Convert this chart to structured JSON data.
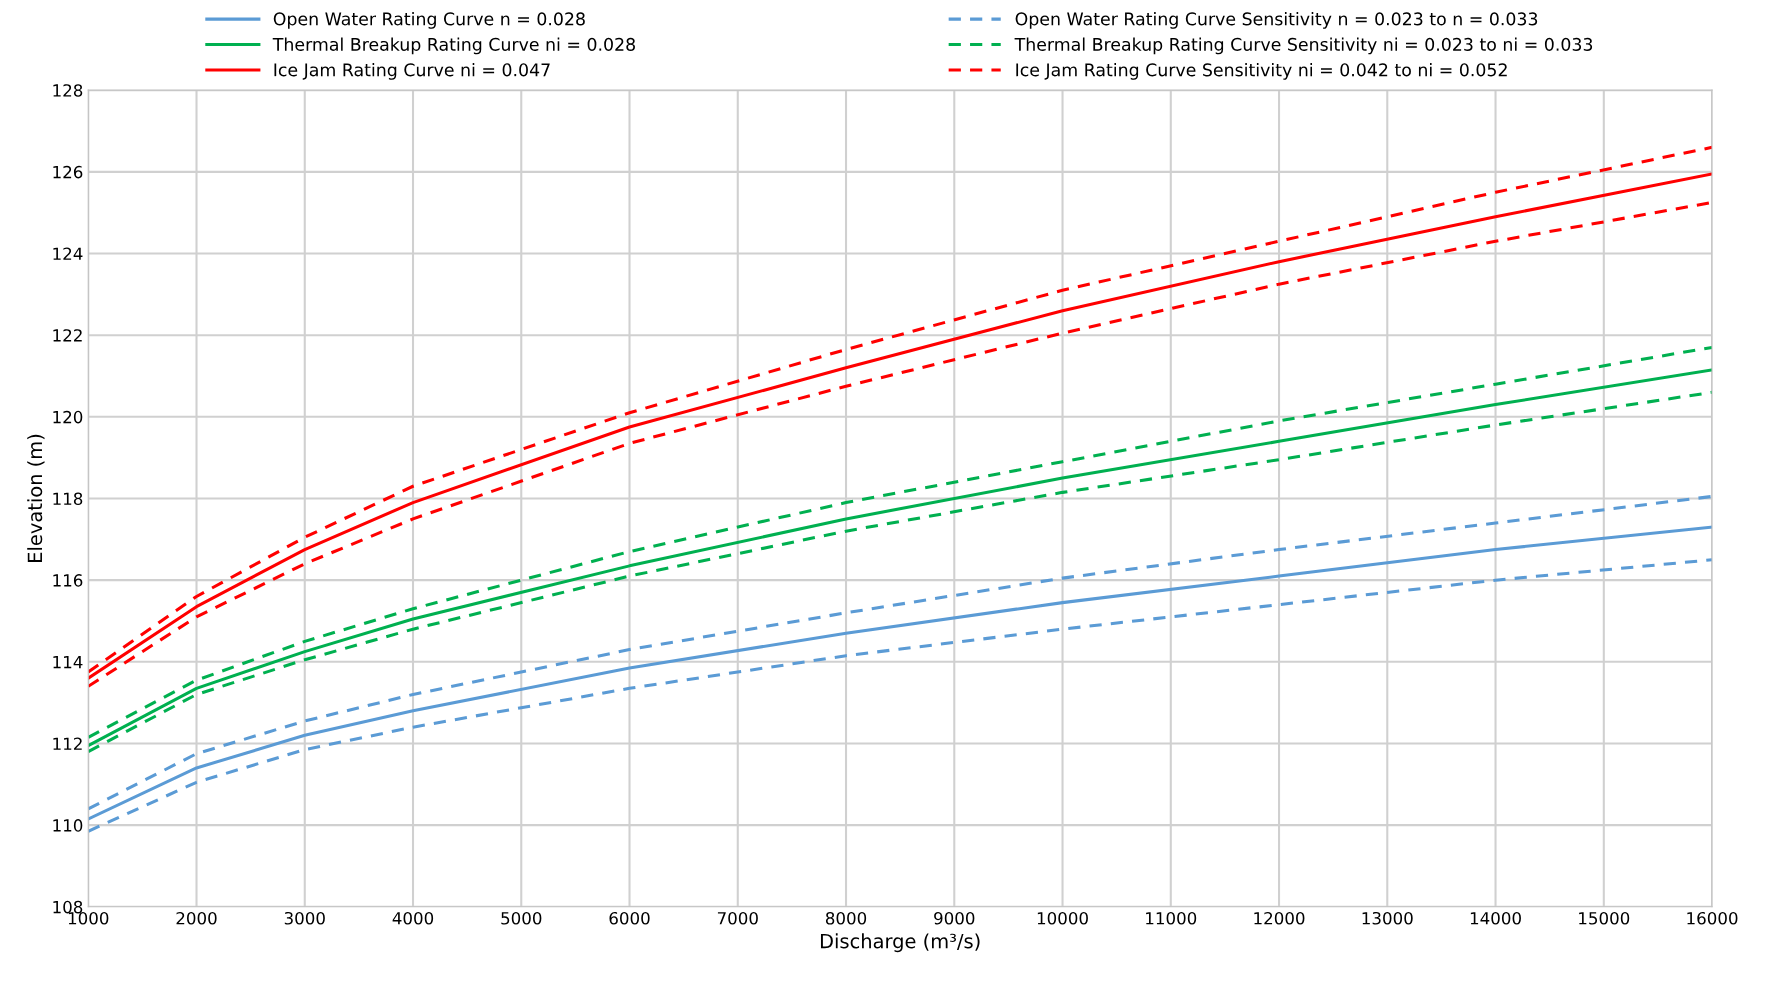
{
  "chart_data": {
    "type": "line",
    "xlabel": "Discharge (m³/s)",
    "ylabel": "Elevation (m)",
    "x": [
      1000,
      2000,
      3000,
      4000,
      6000,
      8000,
      10000,
      12000,
      14000,
      16000
    ],
    "xlim": [
      1000,
      16000
    ],
    "xticks": [
      1000,
      2000,
      3000,
      4000,
      5000,
      6000,
      7000,
      8000,
      9000,
      10000,
      11000,
      12000,
      13000,
      14000,
      15000,
      16000
    ],
    "ylim": [
      108,
      128
    ],
    "yticks": [
      108,
      110,
      112,
      114,
      116,
      118,
      120,
      122,
      124,
      126,
      128
    ],
    "grid": true,
    "legend": "top",
    "marker": "none",
    "series": [
      {
        "name": "Open Water Rating Curve n = 0.028",
        "color": "#5b9bd5",
        "line_style": "solid",
        "values": [
          110.15,
          111.4,
          112.2,
          112.8,
          113.85,
          114.7,
          115.45,
          116.1,
          116.75,
          117.3
        ]
      },
      {
        "name": "Thermal Breakup Rating Curve ni = 0.028",
        "color": "#00b050",
        "line_style": "solid",
        "values": [
          111.95,
          113.35,
          114.25,
          115.05,
          116.35,
          117.5,
          118.5,
          119.4,
          120.3,
          121.15
        ]
      },
      {
        "name": "Ice Jam Rating Curve ni = 0.047",
        "color": "#ff0000",
        "line_style": "solid",
        "values": [
          113.6,
          115.35,
          116.75,
          117.9,
          119.75,
          121.2,
          122.6,
          123.8,
          124.9,
          125.95
        ]
      },
      {
        "name": "Open Water Rating Curve Sensitivity n = 0.023 to n = 0.033",
        "color": "#5b9bd5",
        "line_style": "dashed",
        "values": [
          110.4,
          111.75,
          112.55,
          113.2,
          114.3,
          115.2,
          116.05,
          116.75,
          117.4,
          118.05
        ]
      },
      {
        "name": "Thermal Breakup Rating Curve Sensitivity ni = 0.023 to ni = 0.033",
        "color": "#00b050",
        "line_style": "dashed",
        "values": [
          112.15,
          113.55,
          114.5,
          115.3,
          116.7,
          117.9,
          118.9,
          119.9,
          120.8,
          121.7
        ]
      },
      {
        "name": "Ice Jam Rating Curve Sensitivity ni = 0.042 to ni = 0.052",
        "color": "#ff0000",
        "line_style": "dashed",
        "values": [
          113.75,
          115.6,
          117.05,
          118.3,
          120.1,
          121.65,
          123.1,
          124.3,
          125.5,
          126.6
        ]
      },
      {
        "color": "#5b9bd5",
        "line_style": "dashed",
        "values": [
          109.85,
          111.05,
          111.85,
          112.4,
          113.35,
          114.15,
          114.8,
          115.4,
          116.0,
          116.5
        ]
      },
      {
        "color": "#00b050",
        "line_style": "dashed",
        "values": [
          111.8,
          113.2,
          114.05,
          114.8,
          116.1,
          117.2,
          118.15,
          118.95,
          119.8,
          120.6
        ]
      },
      {
        "color": "#ff0000",
        "line_style": "dashed",
        "values": [
          113.4,
          115.1,
          116.4,
          117.5,
          119.35,
          120.75,
          122.05,
          123.25,
          124.3,
          125.25
        ]
      }
    ]
  }
}
